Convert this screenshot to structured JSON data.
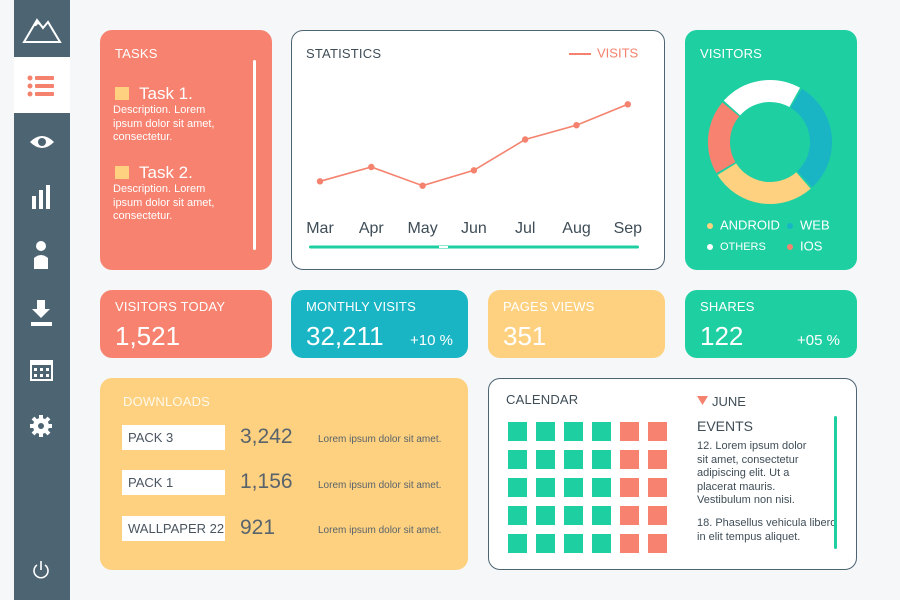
{
  "tasks": {
    "title": "TASKS",
    "items": [
      {
        "title": "Task 1.",
        "description": "Description. Lorem ipsum dolor sit amet, consectetur."
      },
      {
        "title": "Task 2.",
        "description": "Description. Lorem ipsum dolor sit amet, consectetur."
      }
    ]
  },
  "statistics": {
    "title": "STATISTICS",
    "type": "line",
    "categories": [
      "Mar",
      "Apr",
      "May",
      "Jun",
      "Jul",
      "Aug",
      "Sep"
    ],
    "series": [
      {
        "name": "VISITS",
        "color": "#f4826e",
        "values": [
          17,
          30,
          13,
          27,
          55,
          68,
          87
        ]
      }
    ],
    "ylim": [
      0,
      100
    ]
  },
  "visitors": {
    "title": "VISITORS",
    "type": "pie",
    "series": [
      {
        "name": "WEB",
        "color": "#19b5c4",
        "value": 30
      },
      {
        "name": "ANDROID",
        "color": "#fdd17f",
        "value": 28
      },
      {
        "name": "IOS",
        "color": "#f6826f",
        "value": 20
      },
      {
        "name": "OTHERS",
        "color": "#ffffff",
        "value": 22
      }
    ]
  },
  "stats": [
    {
      "title": "VISITORS TODAY",
      "value": "1,521"
    },
    {
      "title": "MONTHLY VISITS",
      "value": "32,211",
      "change": "+10 %"
    },
    {
      "title": "PAGES VIEWS",
      "value": "351"
    },
    {
      "title": "SHARES",
      "value": "122",
      "change": "+05 %"
    }
  ],
  "downloads": {
    "title": "DOWNLOADS",
    "items": [
      {
        "name": "PACK 3",
        "count": "3,242",
        "description": "Lorem ipsum dolor sit amet."
      },
      {
        "name": "PACK 1",
        "count": "1,156",
        "description": "Lorem ipsum dolor sit amet."
      },
      {
        "name": "WALLPAPER 22",
        "count": "921",
        "description": "Lorem ipsum dolor sit amet."
      }
    ]
  },
  "calendar": {
    "title": "CALENDAR",
    "month": "JUNE",
    "events_title": "EVENTS",
    "events": [
      "12. Lorem ipsum dolor sit amet, consectetur adipiscing elit. Ut a placerat mauris. Vestibulum non nisi.",
      "18. Phasellus vehicula libero in elit tempus aliquet."
    ]
  }
}
